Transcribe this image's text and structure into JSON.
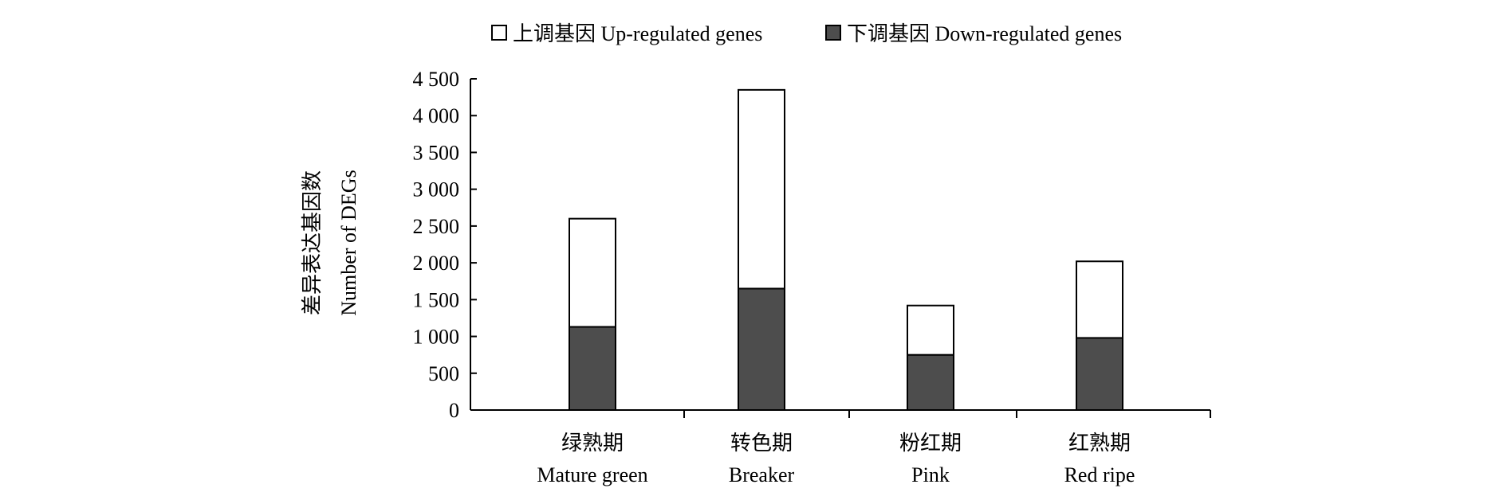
{
  "chart_data": {
    "type": "bar",
    "stacked": true,
    "title": "",
    "categories": [
      {
        "zh": "绿熟期",
        "en": "Mature green"
      },
      {
        "zh": "转色期",
        "en": "Breaker"
      },
      {
        "zh": "粉红期",
        "en": "Pink"
      },
      {
        "zh": "红熟期",
        "en": "Red ripe"
      }
    ],
    "series": [
      {
        "name": "下调基因 Down-regulated genes",
        "values": [
          1130,
          1650,
          750,
          980
        ],
        "color": "#4d4d4d"
      },
      {
        "name": "上调基因 Up-regulated genes",
        "values": [
          1470,
          2700,
          670,
          1040
        ],
        "color": "#ffffff"
      }
    ],
    "legend_order": [
      1,
      0
    ],
    "legend_position": "top-center",
    "ylabel": {
      "zh": "差异表达基因数",
      "en": "Number of DEGs"
    },
    "xlabel": "",
    "ylim": [
      0,
      4500
    ],
    "yticks": [
      0,
      500,
      1000,
      1500,
      2000,
      2500,
      3000,
      3500,
      4000,
      4500
    ],
    "ytick_labels": [
      "0",
      "500",
      "1 000",
      "1 500",
      "2 000",
      "2 500",
      "3 000",
      "3 500",
      "4 000",
      "4 500"
    ],
    "grid": false
  }
}
